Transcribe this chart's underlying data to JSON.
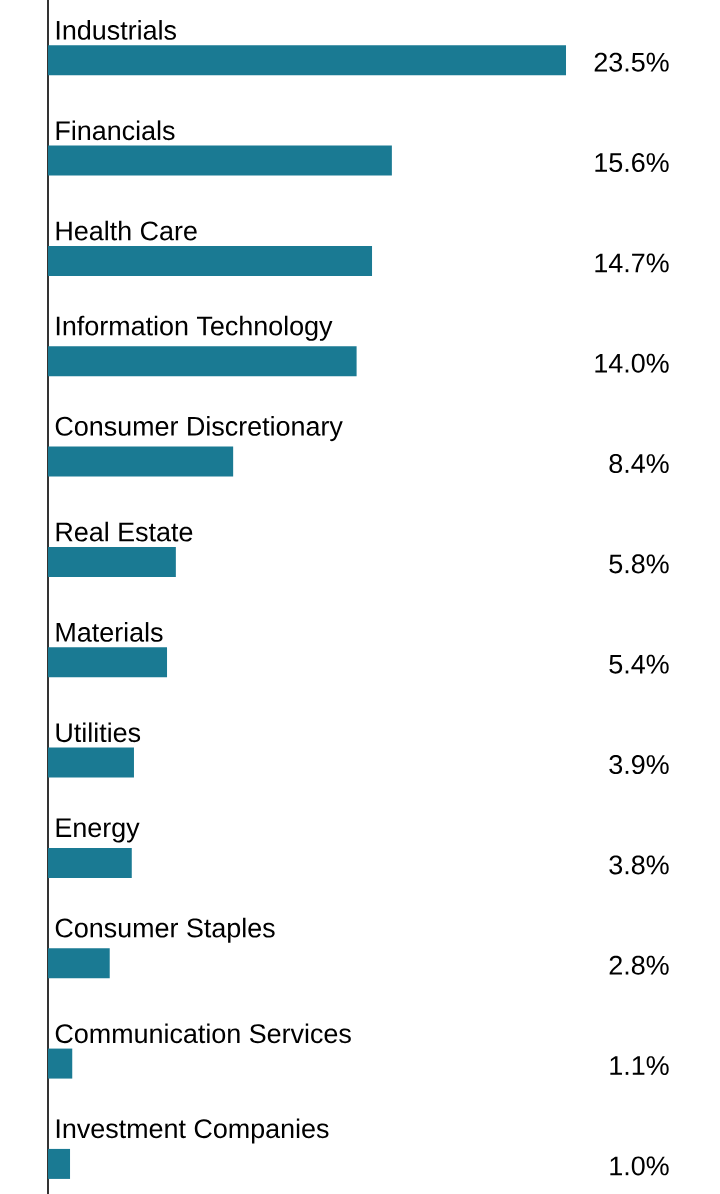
{
  "chart_data": {
    "type": "bar",
    "orientation": "horizontal",
    "categories": [
      "Industrials",
      "Financials",
      "Health Care",
      "Information Technology",
      "Consumer Discretionary",
      "Real Estate",
      "Materials",
      "Utilities",
      "Energy",
      "Consumer Staples",
      "Communication Services",
      "Investment Companies"
    ],
    "values": [
      23.5,
      15.6,
      14.7,
      14.0,
      8.4,
      5.8,
      5.4,
      3.9,
      3.8,
      2.8,
      1.1,
      1.0
    ],
    "value_labels": [
      "23.5%",
      "15.6%",
      "14.7%",
      "14.0%",
      "8.4%",
      "5.8%",
      "5.4%",
      "3.9%",
      "3.8%",
      "2.8%",
      "1.1%",
      "1.0%"
    ],
    "color": "#1a7a93"
  }
}
